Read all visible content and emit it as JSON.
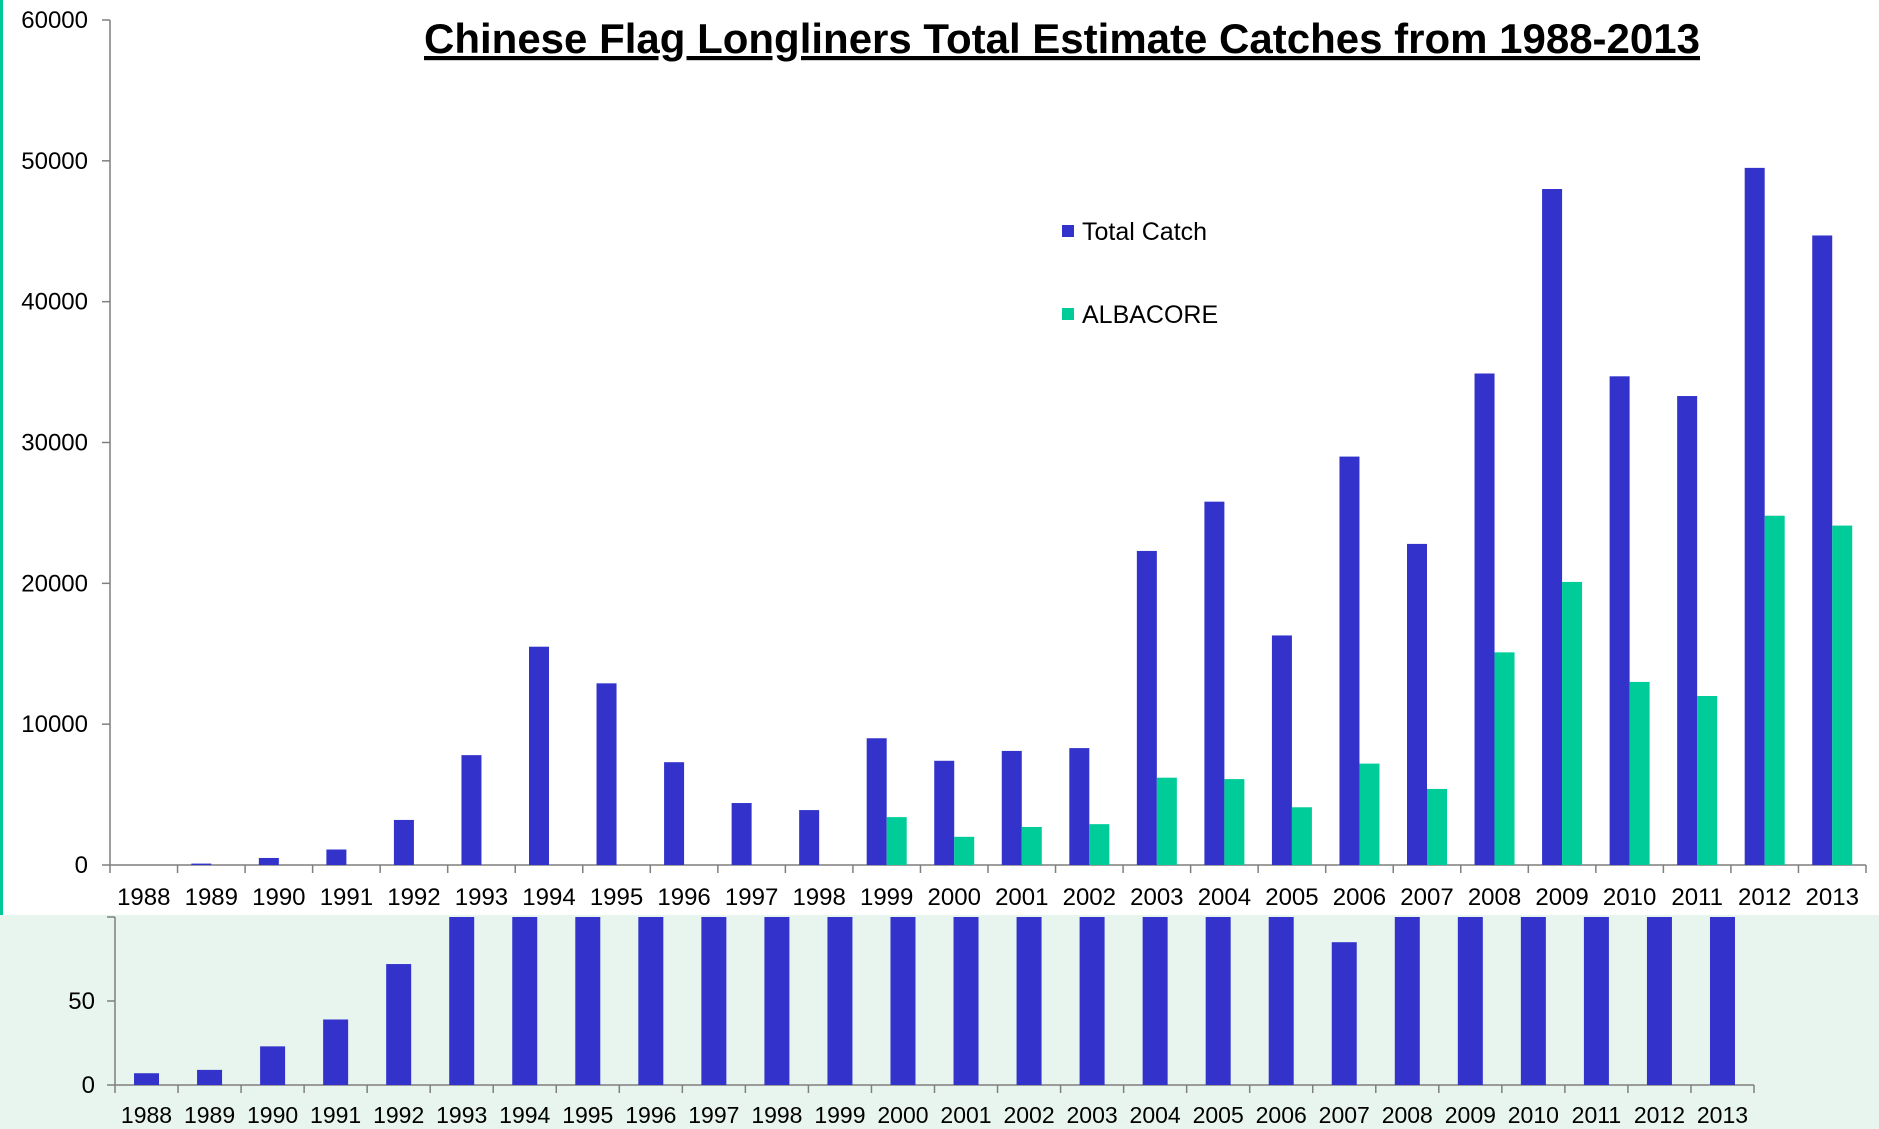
{
  "colors": {
    "total_catch": "#3333CC",
    "albacore": "#00CC99",
    "axis": "#7f7f7f",
    "accent_border": "#00C896",
    "lower_background": "#E8F5EE"
  },
  "chart_data": [
    {
      "type": "bar",
      "title": "Chinese Flag Longliners Total Estimate Catches from 1988-2013",
      "xlabel": "",
      "ylabel": "",
      "ylim": [
        0,
        60000
      ],
      "yticks": [
        0,
        10000,
        20000,
        30000,
        40000,
        50000,
        60000
      ],
      "grid": false,
      "legend_position": "top-right",
      "categories": [
        "1988",
        "1989",
        "1990",
        "1991",
        "1992",
        "1993",
        "1994",
        "1995",
        "1996",
        "1997",
        "1998",
        "1999",
        "2000",
        "2001",
        "2002",
        "2003",
        "2004",
        "2005",
        "2006",
        "2007",
        "2008",
        "2009",
        "2010",
        "2011",
        "2012",
        "2013"
      ],
      "series": [
        {
          "name": "Total Catch",
          "values": [
            0,
            100,
            500,
            1100,
            3200,
            7800,
            15500,
            12900,
            7300,
            4400,
            3900,
            9000,
            7400,
            8100,
            8300,
            22300,
            25800,
            16300,
            29000,
            22800,
            34900,
            48000,
            34700,
            33300,
            49500,
            44700
          ]
        },
        {
          "name": "ALBACORE",
          "values": [
            0,
            0,
            0,
            0,
            0,
            0,
            0,
            0,
            0,
            0,
            0,
            3400,
            2000,
            2700,
            2900,
            6200,
            6100,
            4100,
            7200,
            5400,
            15100,
            20100,
            13000,
            12000,
            24800,
            24100
          ]
        }
      ]
    },
    {
      "type": "bar",
      "title": "",
      "xlabel": "",
      "ylabel": "",
      "ylim": [
        0,
        100
      ],
      "yticks": [
        0,
        50,
        100
      ],
      "yticks_visible": [
        0,
        50
      ],
      "grid": false,
      "categories": [
        "1988",
        "1989",
        "1990",
        "1991",
        "1992",
        "1993",
        "1994",
        "1995",
        "1996",
        "1997",
        "1998",
        "1999",
        "2000",
        "2001",
        "2002",
        "2003",
        "2004",
        "2005",
        "2006",
        "2007",
        "2008",
        "2009",
        "2010",
        "2011",
        "2012",
        "2013"
      ],
      "series": [
        {
          "values": [
            7,
            9,
            23,
            39,
            72,
            100,
            100,
            100,
            100,
            100,
            100,
            100,
            100,
            100,
            100,
            100,
            100,
            100,
            100,
            85,
            100,
            100,
            100,
            100,
            100,
            100
          ]
        }
      ]
    }
  ]
}
